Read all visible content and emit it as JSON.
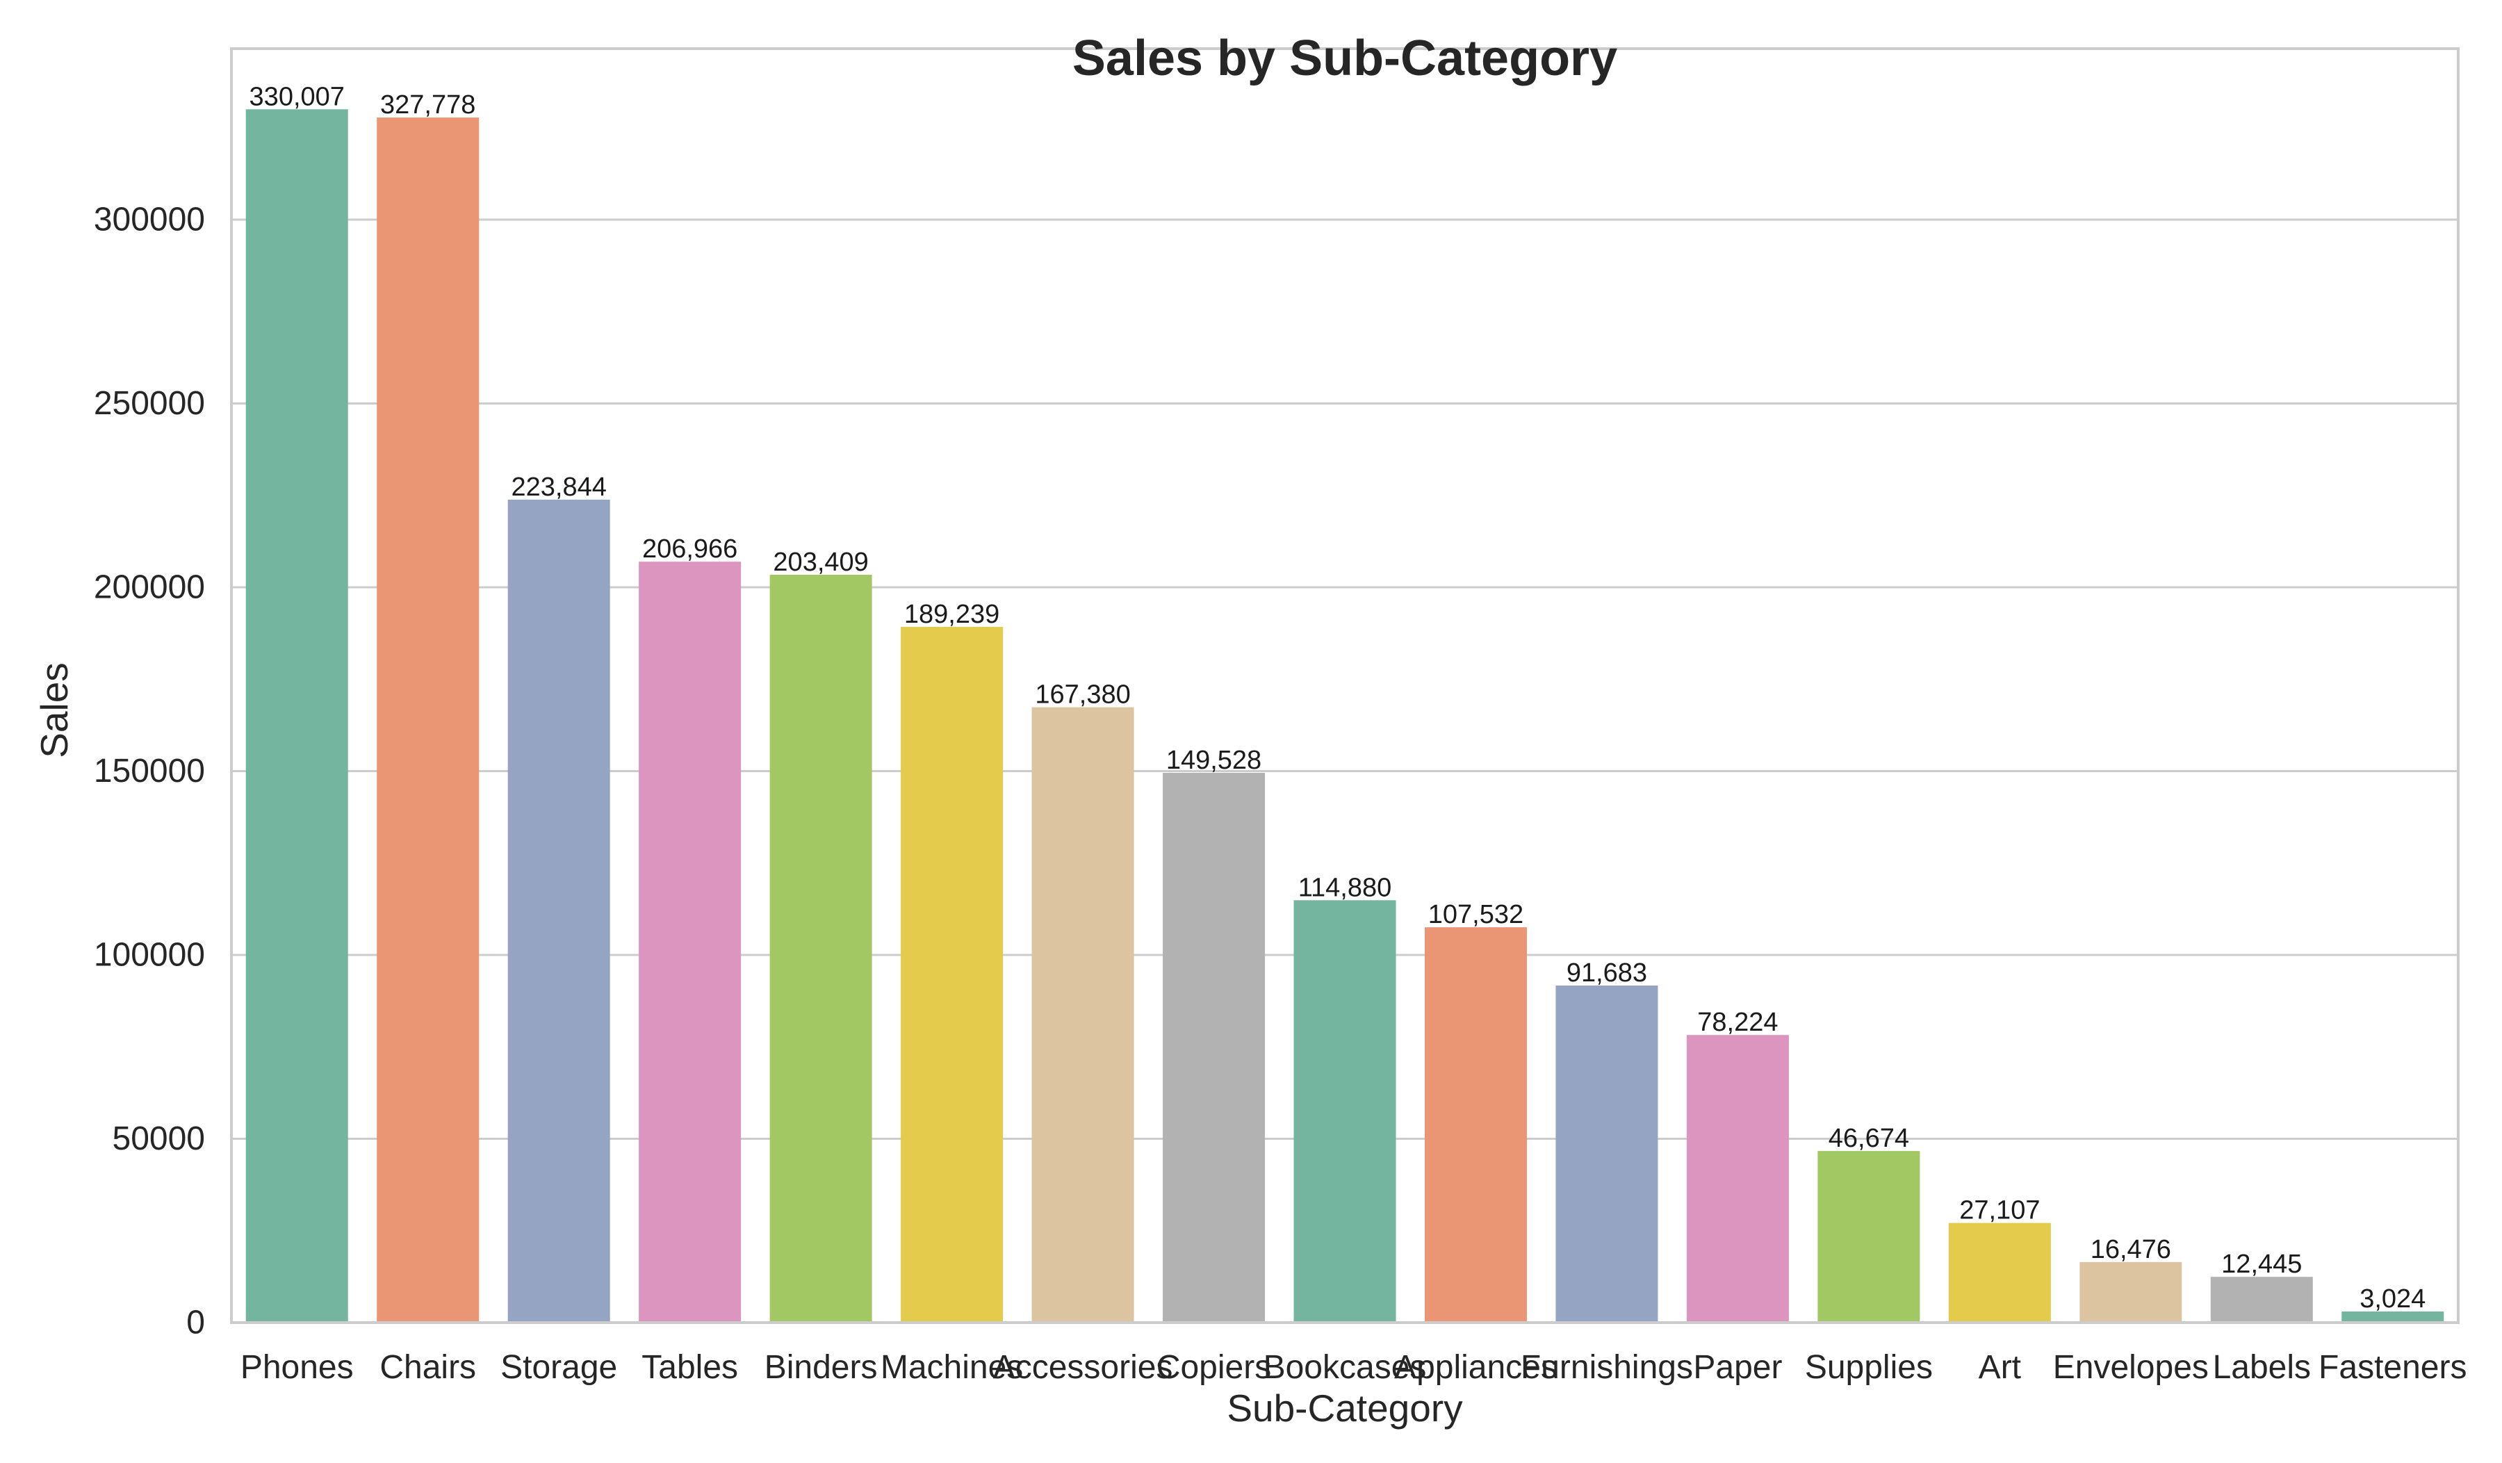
{
  "chart_data": {
    "type": "bar",
    "title": "Sales by Sub-Category",
    "xlabel": "Sub-Category",
    "ylabel": "Sales",
    "ylim": [
      0,
      346507
    ],
    "yticks": [
      0,
      50000,
      100000,
      150000,
      200000,
      250000,
      300000
    ],
    "ytick_labels": [
      "0",
      "50000",
      "100000",
      "150000",
      "200000",
      "250000",
      "300000"
    ],
    "grid": true,
    "categories": [
      "Phones",
      "Chairs",
      "Storage",
      "Tables",
      "Binders",
      "Machines",
      "Accessories",
      "Copiers",
      "Bookcases",
      "Appliances",
      "Furnishings",
      "Paper",
      "Supplies",
      "Art",
      "Envelopes",
      "Labels",
      "Fasteners"
    ],
    "values": [
      330007,
      327778,
      223844,
      206966,
      203409,
      189239,
      167380,
      149528,
      114880,
      107532,
      91683,
      78224,
      46674,
      27107,
      16476,
      12445,
      3024
    ],
    "value_labels": [
      "330,007",
      "327,778",
      "223,844",
      "206,966",
      "203,409",
      "189,239",
      "167,380",
      "149,528",
      "114,880",
      "107,532",
      "91,683",
      "78,224",
      "46,674",
      "27,107",
      "16,476",
      "12,445",
      "3,024"
    ],
    "colors": [
      "#73b59e",
      "#ea9674",
      "#95a4c2",
      "#dc95bf",
      "#a2c864",
      "#e5cb4b",
      "#dbc49f",
      "#b2b2b2",
      "#73b59e",
      "#ea9674",
      "#95a4c2",
      "#dc95bf",
      "#a2c864",
      "#e5cb4b",
      "#dbc49f",
      "#b2b2b2",
      "#73b59e"
    ]
  }
}
